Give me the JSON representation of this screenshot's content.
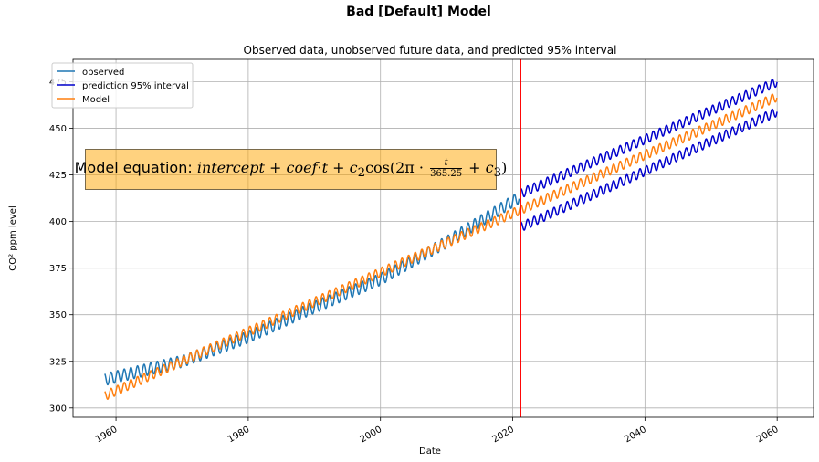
{
  "figure": {
    "suptitle": "Bad [Default] Model",
    "equation": {
      "lead": "Model equation: ",
      "terms": [
        "intercept",
        "+",
        "coef",
        "·",
        "t",
        "+",
        "c",
        "2",
        "cos(2π ·",
        "t",
        "365.25",
        "+",
        "c",
        "3",
        ")"
      ]
    }
  },
  "chart_data": {
    "type": "line",
    "title": "Observed data, unobserved future data, and predicted 95% interval",
    "xlabel": "Date",
    "ylabel": "CO² ppm level",
    "xlim": [
      1953.5,
      2065.5
    ],
    "ylim": [
      295,
      487
    ],
    "xticks": [
      1960,
      1980,
      2000,
      2020,
      2040,
      2060
    ],
    "xtick_labels": [
      "1960",
      "1980",
      "2000",
      "2020",
      "2040",
      "2060"
    ],
    "yticks": [
      300,
      325,
      350,
      375,
      400,
      425,
      450,
      475
    ],
    "ytick_labels": [
      "300",
      "325",
      "350",
      "375",
      "400",
      "425",
      "450",
      "475"
    ],
    "grid": true,
    "legend": "upper left",
    "legend_labels": [
      "observed",
      "prediction 95% interval",
      "Model"
    ],
    "colors": {
      "observed": "#1f77b4",
      "interval": "#0000cc",
      "model": "#ff7f0e",
      "cutoff": "#ff0000"
    },
    "cutoff_x": 2021.2,
    "series": [
      {
        "name": "observed",
        "x_start": 1958.3,
        "x_end": 2021.0,
        "trend_x": [
          1958,
          1970,
          1980,
          1990,
          2000,
          2010,
          2021
        ],
        "trend_y": [
          315,
          325,
          338,
          354,
          369,
          389,
          413
        ],
        "seasonal_amplitude": 3.2
      },
      {
        "name": "Model",
        "x_start": 1958.3,
        "x_end": 2060.0,
        "trend_x": [
          1958,
          2021,
          2060
        ],
        "trend_y": [
          306,
          406,
          467
        ],
        "seasonal_amplitude": 2.5
      },
      {
        "name": "prediction 95% interval (upper)",
        "x_start": 2021.2,
        "x_end": 2060.0,
        "trend_x": [
          2021.2,
          2060
        ],
        "trend_y": [
          415,
          475
        ],
        "seasonal_amplitude": 2.5
      },
      {
        "name": "prediction 95% interval (lower)",
        "x_start": 2021.2,
        "x_end": 2060.0,
        "trend_x": [
          2021.2,
          2060
        ],
        "trend_y": [
          397,
          459
        ],
        "seasonal_amplitude": 2.5
      }
    ]
  }
}
